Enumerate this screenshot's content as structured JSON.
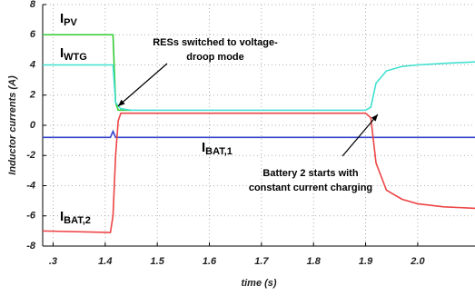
{
  "chart_data": {
    "type": "line",
    "y_label": "Inductor currents (A)",
    "x_label": "time (s)",
    "xlim": [
      1.28,
      2.11
    ],
    "ylim": [
      -8,
      8
    ],
    "xticks": [
      {
        "value": 1.3,
        "label": ".3"
      },
      1.4,
      1.5,
      1.6,
      1.7,
      1.8,
      1.9,
      {
        "value": 2.0,
        "label": "2.0"
      }
    ],
    "yticks": [
      -8,
      -6,
      -4,
      -2,
      0,
      2,
      4,
      6,
      8
    ],
    "grid": true,
    "x": [
      1.28,
      1.41,
      1.415,
      1.42,
      1.425,
      1.43,
      1.45,
      1.9,
      1.91,
      1.92,
      1.94,
      1.97,
      2.0,
      2.05,
      2.11
    ],
    "series": [
      {
        "name": "IPV",
        "color": "#33cc33",
        "values": [
          6,
          6,
          6,
          1.5,
          1.0,
          1.0,
          1.0,
          null,
          null,
          null,
          null,
          null,
          null,
          null,
          null
        ]
      },
      {
        "name": "IWTG",
        "color": "#40e0d0",
        "values": [
          4,
          4,
          4,
          1.5,
          1.3,
          1.1,
          1.0,
          1.0,
          1.2,
          2.8,
          3.6,
          3.9,
          4.0,
          4.1,
          4.2
        ]
      },
      {
        "name": "IBAT,1",
        "color": "#3344cc",
        "values": [
          -0.8,
          -0.8,
          -0.4,
          -0.8,
          -0.8,
          -0.8,
          -0.8,
          -0.8,
          -0.8,
          -0.8,
          -0.8,
          -0.8,
          -0.8,
          -0.8,
          -0.8
        ]
      },
      {
        "name": "IBAT,2",
        "color": "#ee4444",
        "values": [
          -7,
          -7.1,
          -6,
          -2,
          0.3,
          0.8,
          0.8,
          0.8,
          0.5,
          -2.5,
          -4.3,
          -4.9,
          -5.2,
          -5.4,
          -5.5
        ]
      }
    ],
    "annotations": [
      {
        "lines": [
          "RESs switched to voltage-",
          "droop mode"
        ]
      },
      {
        "lines": [
          "Battery 2 starts with",
          "constant current charging"
        ]
      }
    ]
  }
}
